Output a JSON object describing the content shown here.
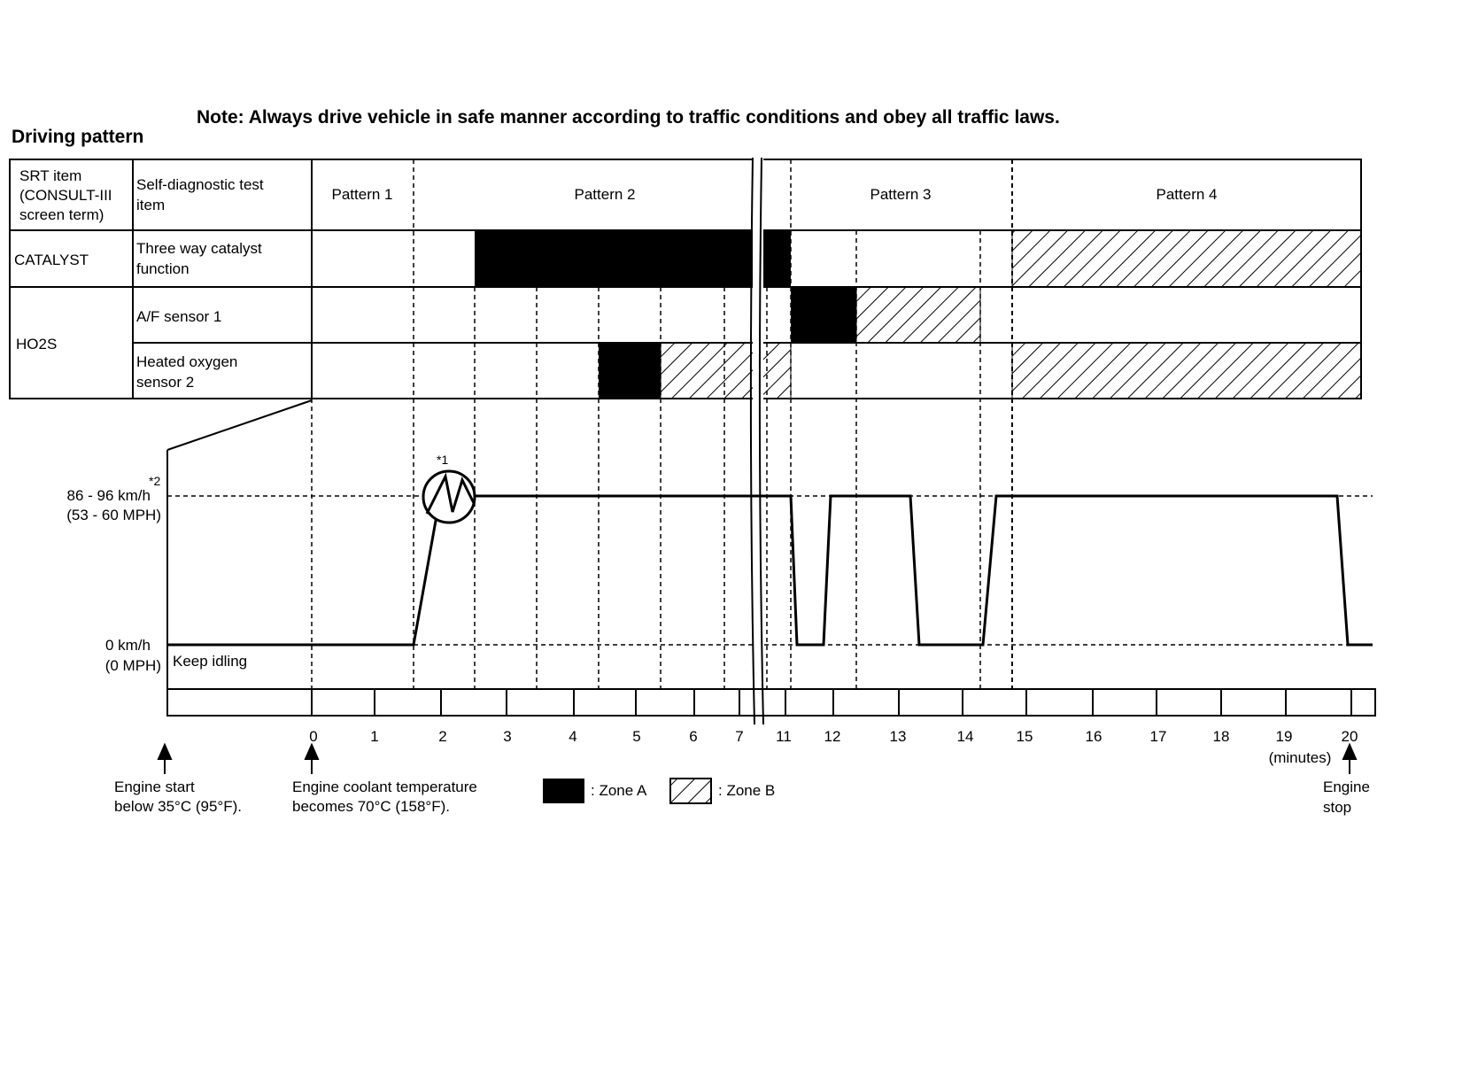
{
  "note": "Note: Always drive vehicle in safe manner according to traffic conditions and obey all traffic laws.",
  "title": "Driving pattern",
  "table": {
    "header_col1": [
      "SRT item",
      "(CONSULT-III",
      "screen term)"
    ],
    "header_col2": [
      "Self-diagnostic test",
      "item"
    ],
    "patterns": [
      "Pattern 1",
      "Pattern 2",
      "Pattern 3",
      "Pattern 4"
    ],
    "rows": {
      "catalyst_srt": "CATALYST",
      "catalyst_item": [
        "Three way catalyst",
        "function"
      ],
      "ho2s_srt": "HO2S",
      "af_sensor": "A/F sensor 1",
      "ho2_sensor": [
        "Heated oxygen",
        "sensor 2"
      ]
    }
  },
  "speed": {
    "high_label": "86 - 96 km/h",
    "high_label_mph": "(53 - 60 MPH)",
    "high_note": "*2",
    "low_label": "0 km/h",
    "low_label_mph": "(0 MPH)",
    "keep_idling": "Keep idling",
    "accel_note": "*1"
  },
  "time_ticks": [
    "0",
    "1",
    "2",
    "3",
    "4",
    "5",
    "6",
    "7",
    "11",
    "12",
    "13",
    "14",
    "15",
    "16",
    "17",
    "18",
    "19",
    "20"
  ],
  "minutes_label": "(minutes)",
  "annotations": {
    "engine_start": [
      "Engine start",
      "below 35°C (95°F)."
    ],
    "coolant": [
      "Engine coolant temperature",
      "becomes 70°C (158°F)."
    ],
    "engine_stop": [
      "Engine",
      "stop"
    ]
  },
  "legend": {
    "zone_a": ": Zone A",
    "zone_b": ": Zone B"
  }
}
